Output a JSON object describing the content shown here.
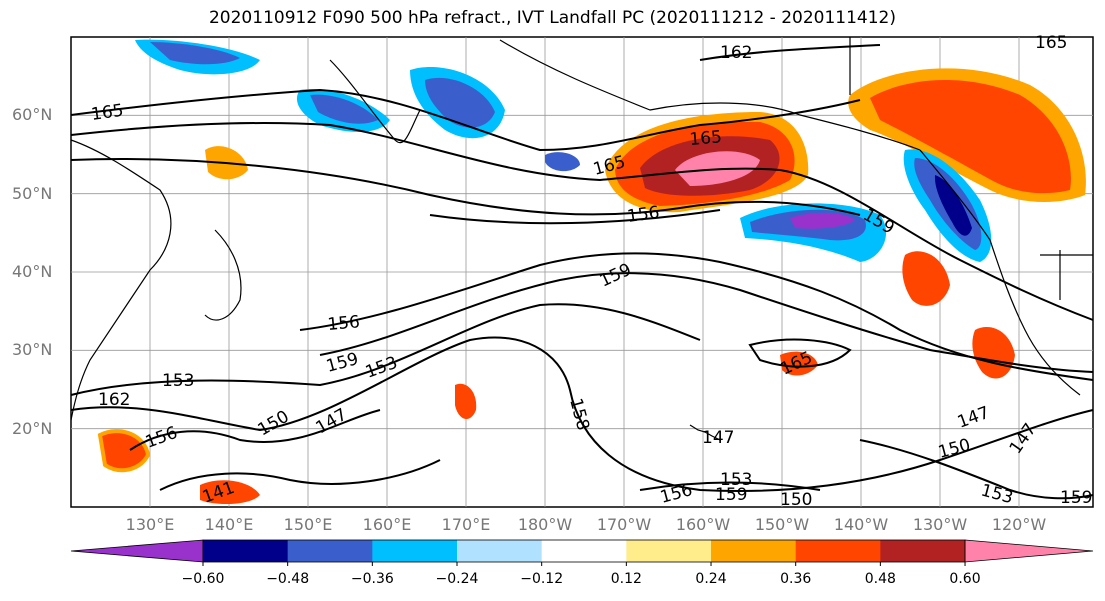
{
  "title": "2020110912 F090 500 hPa refract., IVT Landfall PC (2020111212 - 2020111412)",
  "lat_labels": [
    {
      "text": "60°N",
      "lat": 60
    },
    {
      "text": "50°N",
      "lat": 50
    },
    {
      "text": "40°N",
      "lat": 40
    },
    {
      "text": "30°N",
      "lat": 30
    },
    {
      "text": "20°N",
      "lat": 20
    }
  ],
  "lon_labels": [
    "130°E",
    "140°E",
    "150°E",
    "160°E",
    "170°E",
    "180°W",
    "170°W",
    "160°W",
    "150°W",
    "140°W",
    "130°W",
    "120°W"
  ],
  "contour_labels": [
    "165",
    "165",
    "165",
    "162",
    "162",
    "165",
    "156",
    "159",
    "159",
    "156",
    "159",
    "153",
    "153",
    "150",
    "147",
    "156",
    "147",
    "147",
    "150",
    "147",
    "153",
    "153",
    "156",
    "159",
    "150",
    "141",
    "158",
    "159",
    "165"
  ],
  "colorbar": {
    "colors": [
      "#9932cc",
      "#00008b",
      "#3a5fcd",
      "#00bfff",
      "#b0e2ff",
      "#ffffff",
      "#ffec8b",
      "#ffa500",
      "#ff4500",
      "#b22222",
      "#ff82ab"
    ],
    "ticks": [
      "−0.60",
      "−0.48",
      "−0.36",
      "−0.24",
      "−0.12",
      "0.12",
      "0.24",
      "0.36",
      "0.48",
      "0.60"
    ]
  }
}
